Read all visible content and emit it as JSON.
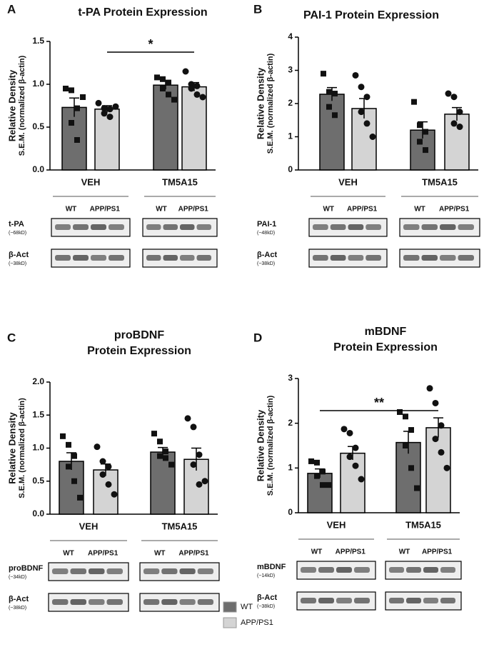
{
  "chart_data": [
    {
      "type": "bar",
      "panel": "A",
      "title": [
        "t-PA Protein Expression"
      ],
      "y_label": [
        "Relative Density",
        "S.E.M. (normalized β-actin)"
      ],
      "categories": [
        "VEH",
        "TM5A15"
      ],
      "ylim": [
        0,
        1.5
      ],
      "yticks": [
        {
          "value": 0,
          "label": "0.0"
        },
        0.5,
        {
          "value": 1,
          "label": "1.0"
        },
        1.5
      ],
      "significance": "*",
      "series": [
        {
          "name": "WT",
          "color": "#6e6e6e",
          "marker": "square",
          "values": [
            0.73,
            0.99
          ],
          "errors": [
            0.11,
            0.05
          ],
          "points": [
            [
              0.95,
              0.93,
              0.72,
              0.55,
              0.35,
              0.85
            ],
            [
              1.08,
              1.06,
              1.02,
              0.95,
              0.88,
              0.82
            ]
          ]
        },
        {
          "name": "APP/PS1",
          "color": "#d4d4d4",
          "marker": "circle",
          "values": [
            0.71,
            0.97
          ],
          "errors": [
            0.04,
            0.05
          ],
          "points": [
            [
              0.78,
              0.72,
              0.71,
              0.66,
              0.62,
              0.74
            ],
            [
              1.15,
              1.0,
              0.98,
              0.95,
              0.88,
              0.85
            ]
          ]
        }
      ],
      "blot": {
        "lanes": [
          "WT",
          "APP/PS1",
          "WT",
          "APP/PS1"
        ],
        "bands": [
          {
            "name": "t-PA",
            "size": "(~68kD)"
          },
          {
            "name": "β-Act",
            "size": "(~38kD)"
          }
        ]
      }
    },
    {
      "type": "bar",
      "panel": "B",
      "title": [
        "PAI-1 Protein Expression"
      ],
      "y_label": [
        "Relative Density",
        "S.E.M. (normalized β-actin)"
      ],
      "categories": [
        "VEH",
        "TM5A15"
      ],
      "ylim": [
        0,
        4
      ],
      "yticks": [
        0,
        1,
        2,
        3,
        4
      ],
      "series": [
        {
          "name": "WT",
          "color": "#6e6e6e",
          "marker": "square",
          "values": [
            2.28,
            1.2
          ],
          "errors": [
            0.2,
            0.25
          ],
          "points": [
            [
              2.9,
              2.35,
              2.3,
              1.9,
              1.65
            ],
            [
              2.05,
              1.35,
              1.15,
              0.85,
              0.6
            ]
          ]
        },
        {
          "name": "APP/PS1",
          "color": "#d4d4d4",
          "marker": "circle",
          "values": [
            1.85,
            1.68
          ],
          "errors": [
            0.3,
            0.2
          ],
          "points": [
            [
              2.85,
              2.5,
              2.2,
              1.75,
              1.4,
              1.0
            ],
            [
              2.3,
              2.2,
              1.75,
              1.4,
              1.3
            ]
          ]
        }
      ],
      "blot": {
        "lanes": [
          "WT",
          "APP/PS1",
          "WT",
          "APP/PS1"
        ],
        "bands": [
          {
            "name": "PAI-1",
            "size": "(~48kD)"
          },
          {
            "name": "β-Act",
            "size": "(~38kD)"
          }
        ]
      }
    },
    {
      "type": "bar",
      "panel": "C",
      "title": [
        "proBDNF",
        "Protein Expression"
      ],
      "y_label": [
        "Relative Density",
        "S.E.M. (normalized β-actin)"
      ],
      "categories": [
        "VEH",
        "TM5A15"
      ],
      "ylim": [
        0,
        2
      ],
      "yticks": [
        {
          "value": 0,
          "label": "0.0"
        },
        0.5,
        {
          "value": 1,
          "label": "1.0"
        },
        1.5,
        {
          "value": 2,
          "label": "2.0"
        }
      ],
      "series": [
        {
          "name": "WT",
          "color": "#6e6e6e",
          "marker": "square",
          "values": [
            0.8,
            0.94
          ],
          "errors": [
            0.13,
            0.07
          ],
          "points": [
            [
              1.18,
              1.05,
              0.88,
              0.72,
              0.5,
              0.25
            ],
            [
              1.22,
              1.1,
              0.95,
              0.88,
              0.85,
              0.75
            ]
          ]
        },
        {
          "name": "APP/PS1",
          "color": "#d4d4d4",
          "marker": "circle",
          "values": [
            0.67,
            0.83
          ],
          "errors": [
            0.09,
            0.17
          ],
          "points": [
            [
              1.02,
              0.8,
              0.72,
              0.6,
              0.45,
              0.3
            ],
            [
              1.45,
              1.32,
              0.9,
              0.75,
              0.45,
              0.5
            ]
          ]
        }
      ],
      "blot": {
        "lanes": [
          "WT",
          "APP/PS1",
          "WT",
          "APP/PS1"
        ],
        "bands": [
          {
            "name": "proBDNF",
            "size": "(~34kD)"
          },
          {
            "name": "β-Act",
            "size": "(~38kD)"
          }
        ]
      }
    },
    {
      "type": "bar",
      "panel": "D",
      "title": [
        "mBDNF",
        "Protein Expression"
      ],
      "y_label": [
        "Relative Density",
        "S.E.M. (normalized β-actin)"
      ],
      "categories": [
        "VEH",
        "TM5A15"
      ],
      "ylim": [
        0,
        3
      ],
      "yticks": [
        0,
        1,
        2,
        3
      ],
      "significance": "**",
      "series": [
        {
          "name": "WT",
          "color": "#6e6e6e",
          "marker": "square",
          "values": [
            0.88,
            1.57
          ],
          "errors": [
            0.1,
            0.25
          ],
          "points": [
            [
              1.15,
              1.12,
              0.92,
              0.82,
              0.62,
              0.62
            ],
            [
              2.25,
              2.15,
              1.85,
              1.5,
              1.0,
              0.55
            ]
          ]
        },
        {
          "name": "APP/PS1",
          "color": "#d4d4d4",
          "marker": "circle",
          "values": [
            1.33,
            1.9
          ],
          "errors": [
            0.15,
            0.22
          ],
          "points": [
            [
              1.87,
              1.78,
              1.45,
              1.25,
              1.05,
              0.75
            ],
            [
              2.78,
              2.45,
              1.95,
              1.65,
              1.35,
              1.0
            ]
          ]
        }
      ],
      "blot": {
        "lanes": [
          "WT",
          "APP/PS1",
          "WT",
          "APP/PS1"
        ],
        "bands": [
          {
            "name": "mBDNF",
            "size": "(~14kD)"
          },
          {
            "name": "β-Act",
            "size": "(~38kD)"
          }
        ]
      }
    }
  ]
}
